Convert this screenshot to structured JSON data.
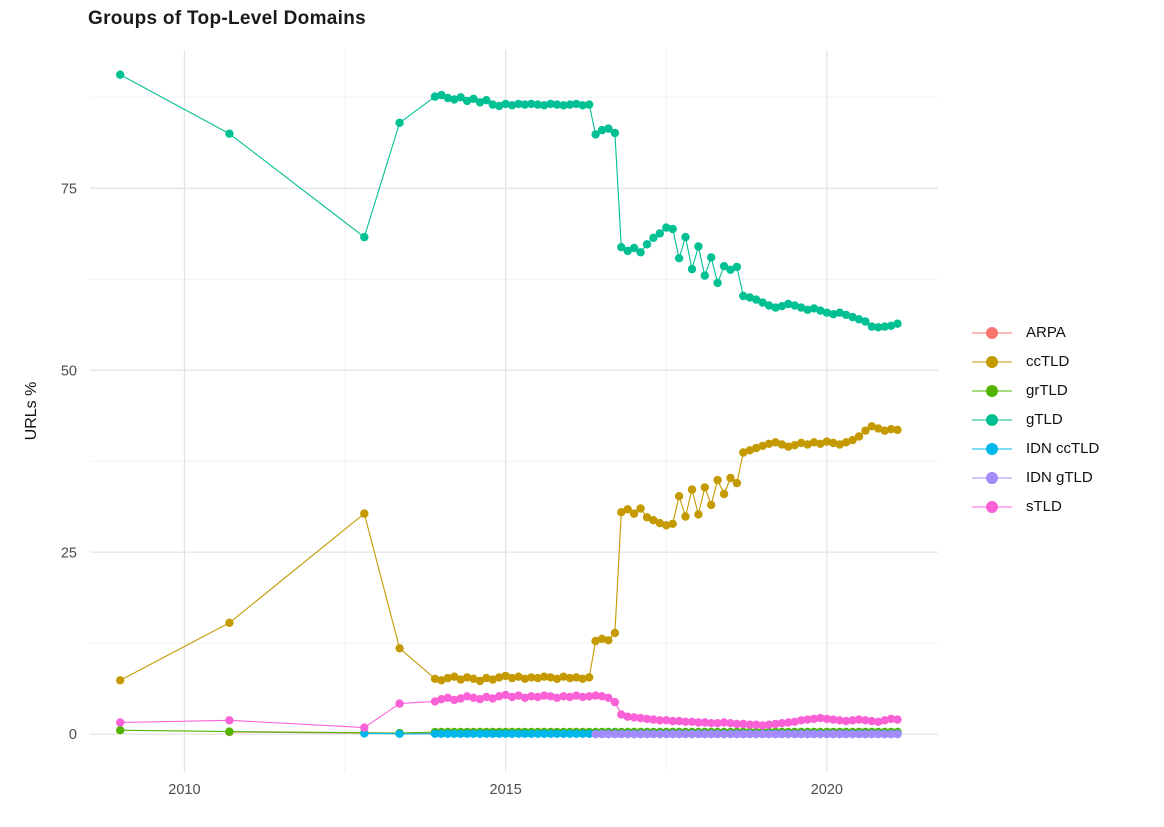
{
  "chart_data": {
    "type": "line",
    "title": "Groups of Top-Level Domains",
    "xlabel": "",
    "ylabel": "URLs %",
    "x_ticks": [
      2010,
      2015,
      2020
    ],
    "x_minor_gridlines": [
      2012.5,
      2017.5
    ],
    "y_ticks": [
      0,
      25,
      50,
      75
    ],
    "y_minor_gridlines": [
      12.5,
      37.5,
      62.5,
      87.5
    ],
    "xlim": [
      2008.53,
      2021.73
    ],
    "ylim": [
      -5.2,
      94.0
    ],
    "grid": true,
    "legend_position": "right",
    "point_radius": 4.2,
    "series": [
      {
        "name": "ARPA",
        "color": "#F8766D",
        "points": [
          [
            2010.7,
            0.3
          ],
          [
            2012.8,
            0.15
          ],
          [
            2013.35,
            0.1
          ]
        ],
        "dense": {
          "x_start": 2013.9,
          "x_end": 2021.1,
          "step": 0.1,
          "const": 0.1
        }
      },
      {
        "name": "ccTLD",
        "color": "#C49A00",
        "points": [
          [
            2009.0,
            7.4
          ],
          [
            2010.7,
            15.3
          ],
          [
            2012.8,
            30.3
          ],
          [
            2013.35,
            11.8
          ]
        ],
        "dense": {
          "x_start": 2013.9,
          "x_end": 2021.1,
          "step": 0.1,
          "values": [
            7.6,
            7.4,
            7.7,
            7.9,
            7.5,
            7.8,
            7.6,
            7.3,
            7.7,
            7.5,
            7.8,
            8.0,
            7.7,
            7.9,
            7.6,
            7.8,
            7.7,
            7.9,
            7.8,
            7.6,
            7.9,
            7.7,
            7.8,
            7.6,
            7.8,
            12.8,
            13.1,
            12.9,
            13.9,
            30.5,
            30.9,
            30.3,
            31.0,
            29.8,
            29.4,
            29.0,
            28.7,
            28.9,
            32.7,
            29.9,
            33.6,
            30.2,
            33.9,
            31.5,
            34.9,
            33.0,
            35.2,
            34.5,
            38.7,
            39.0,
            39.3,
            39.6,
            39.9,
            40.1,
            39.8,
            39.5,
            39.7,
            40.0,
            39.8,
            40.1,
            39.9,
            40.2,
            40.0,
            39.8,
            40.1,
            40.4,
            40.9,
            41.7,
            42.3,
            42.0,
            41.7,
            41.9,
            41.8
          ]
        }
      },
      {
        "name": "grTLD",
        "color": "#53B400",
        "points": [
          [
            2009.0,
            0.55
          ],
          [
            2010.7,
            0.35
          ],
          [
            2012.8,
            0.2
          ],
          [
            2013.35,
            0.15
          ]
        ],
        "dense": {
          "x_start": 2013.9,
          "x_end": 2021.1,
          "step": 0.1,
          "const": 0.3
        }
      },
      {
        "name": "gTLD",
        "color": "#00C094",
        "points": [
          [
            2009.0,
            90.6
          ],
          [
            2010.7,
            82.5
          ],
          [
            2012.8,
            68.3
          ],
          [
            2013.35,
            84.0
          ]
        ],
        "dense": {
          "x_start": 2013.9,
          "x_end": 2021.1,
          "step": 0.1,
          "values": [
            87.6,
            87.8,
            87.4,
            87.2,
            87.5,
            87.0,
            87.3,
            86.8,
            87.1,
            86.5,
            86.3,
            86.6,
            86.4,
            86.6,
            86.5,
            86.6,
            86.5,
            86.4,
            86.6,
            86.5,
            86.4,
            86.5,
            86.6,
            86.4,
            86.5,
            82.4,
            83.0,
            83.2,
            82.6,
            66.9,
            66.4,
            66.8,
            66.2,
            67.3,
            68.2,
            68.8,
            69.6,
            69.4,
            65.4,
            68.3,
            63.9,
            67.0,
            63.0,
            65.5,
            62.0,
            64.3,
            63.8,
            64.2,
            60.2,
            60.0,
            59.7,
            59.3,
            58.9,
            58.6,
            58.8,
            59.1,
            58.9,
            58.6,
            58.3,
            58.5,
            58.2,
            57.9,
            57.7,
            57.9,
            57.6,
            57.3,
            57.0,
            56.7,
            56.0,
            55.9,
            56.0,
            56.1,
            56.4
          ]
        }
      },
      {
        "name": "IDN ccTLD",
        "color": "#00B6EB",
        "points": [
          [
            2012.8,
            0.1
          ],
          [
            2013.35,
            0.05
          ]
        ],
        "dense": {
          "x_start": 2013.9,
          "x_end": 2021.1,
          "step": 0.1,
          "const": 0.05
        }
      },
      {
        "name": "IDN gTLD",
        "color": "#A58AFF",
        "points": [],
        "dense": {
          "x_start": 2016.4,
          "x_end": 2021.1,
          "step": 0.1,
          "const": 0.0
        }
      },
      {
        "name": "sTLD",
        "color": "#FB61D7",
        "points": [
          [
            2009.0,
            1.6
          ],
          [
            2010.7,
            1.9
          ],
          [
            2012.8,
            0.9
          ],
          [
            2013.35,
            4.2
          ]
        ],
        "dense": {
          "x_start": 2013.9,
          "x_end": 2021.1,
          "step": 0.1,
          "values": [
            4.5,
            4.8,
            5.0,
            4.7,
            4.9,
            5.2,
            5.0,
            4.8,
            5.1,
            4.9,
            5.2,
            5.4,
            5.1,
            5.3,
            5.0,
            5.2,
            5.1,
            5.3,
            5.2,
            5.0,
            5.2,
            5.1,
            5.3,
            5.1,
            5.2,
            5.3,
            5.2,
            5.0,
            4.4,
            2.7,
            2.4,
            2.3,
            2.2,
            2.1,
            2.0,
            1.9,
            1.9,
            1.8,
            1.8,
            1.7,
            1.7,
            1.6,
            1.6,
            1.5,
            1.5,
            1.6,
            1.5,
            1.4,
            1.4,
            1.3,
            1.3,
            1.2,
            1.3,
            1.4,
            1.5,
            1.6,
            1.7,
            1.9,
            2.0,
            2.1,
            2.2,
            2.1,
            2.0,
            1.9,
            1.8,
            1.9,
            2.0,
            1.9,
            1.8,
            1.7,
            1.9,
            2.1,
            2.0
          ]
        }
      }
    ],
    "colors": {
      "grid_major": "#e3e3e3",
      "grid_minor": "#f1f1f1",
      "axis_text": "#4d4d4d",
      "title_text": "#1a1a1a"
    }
  }
}
